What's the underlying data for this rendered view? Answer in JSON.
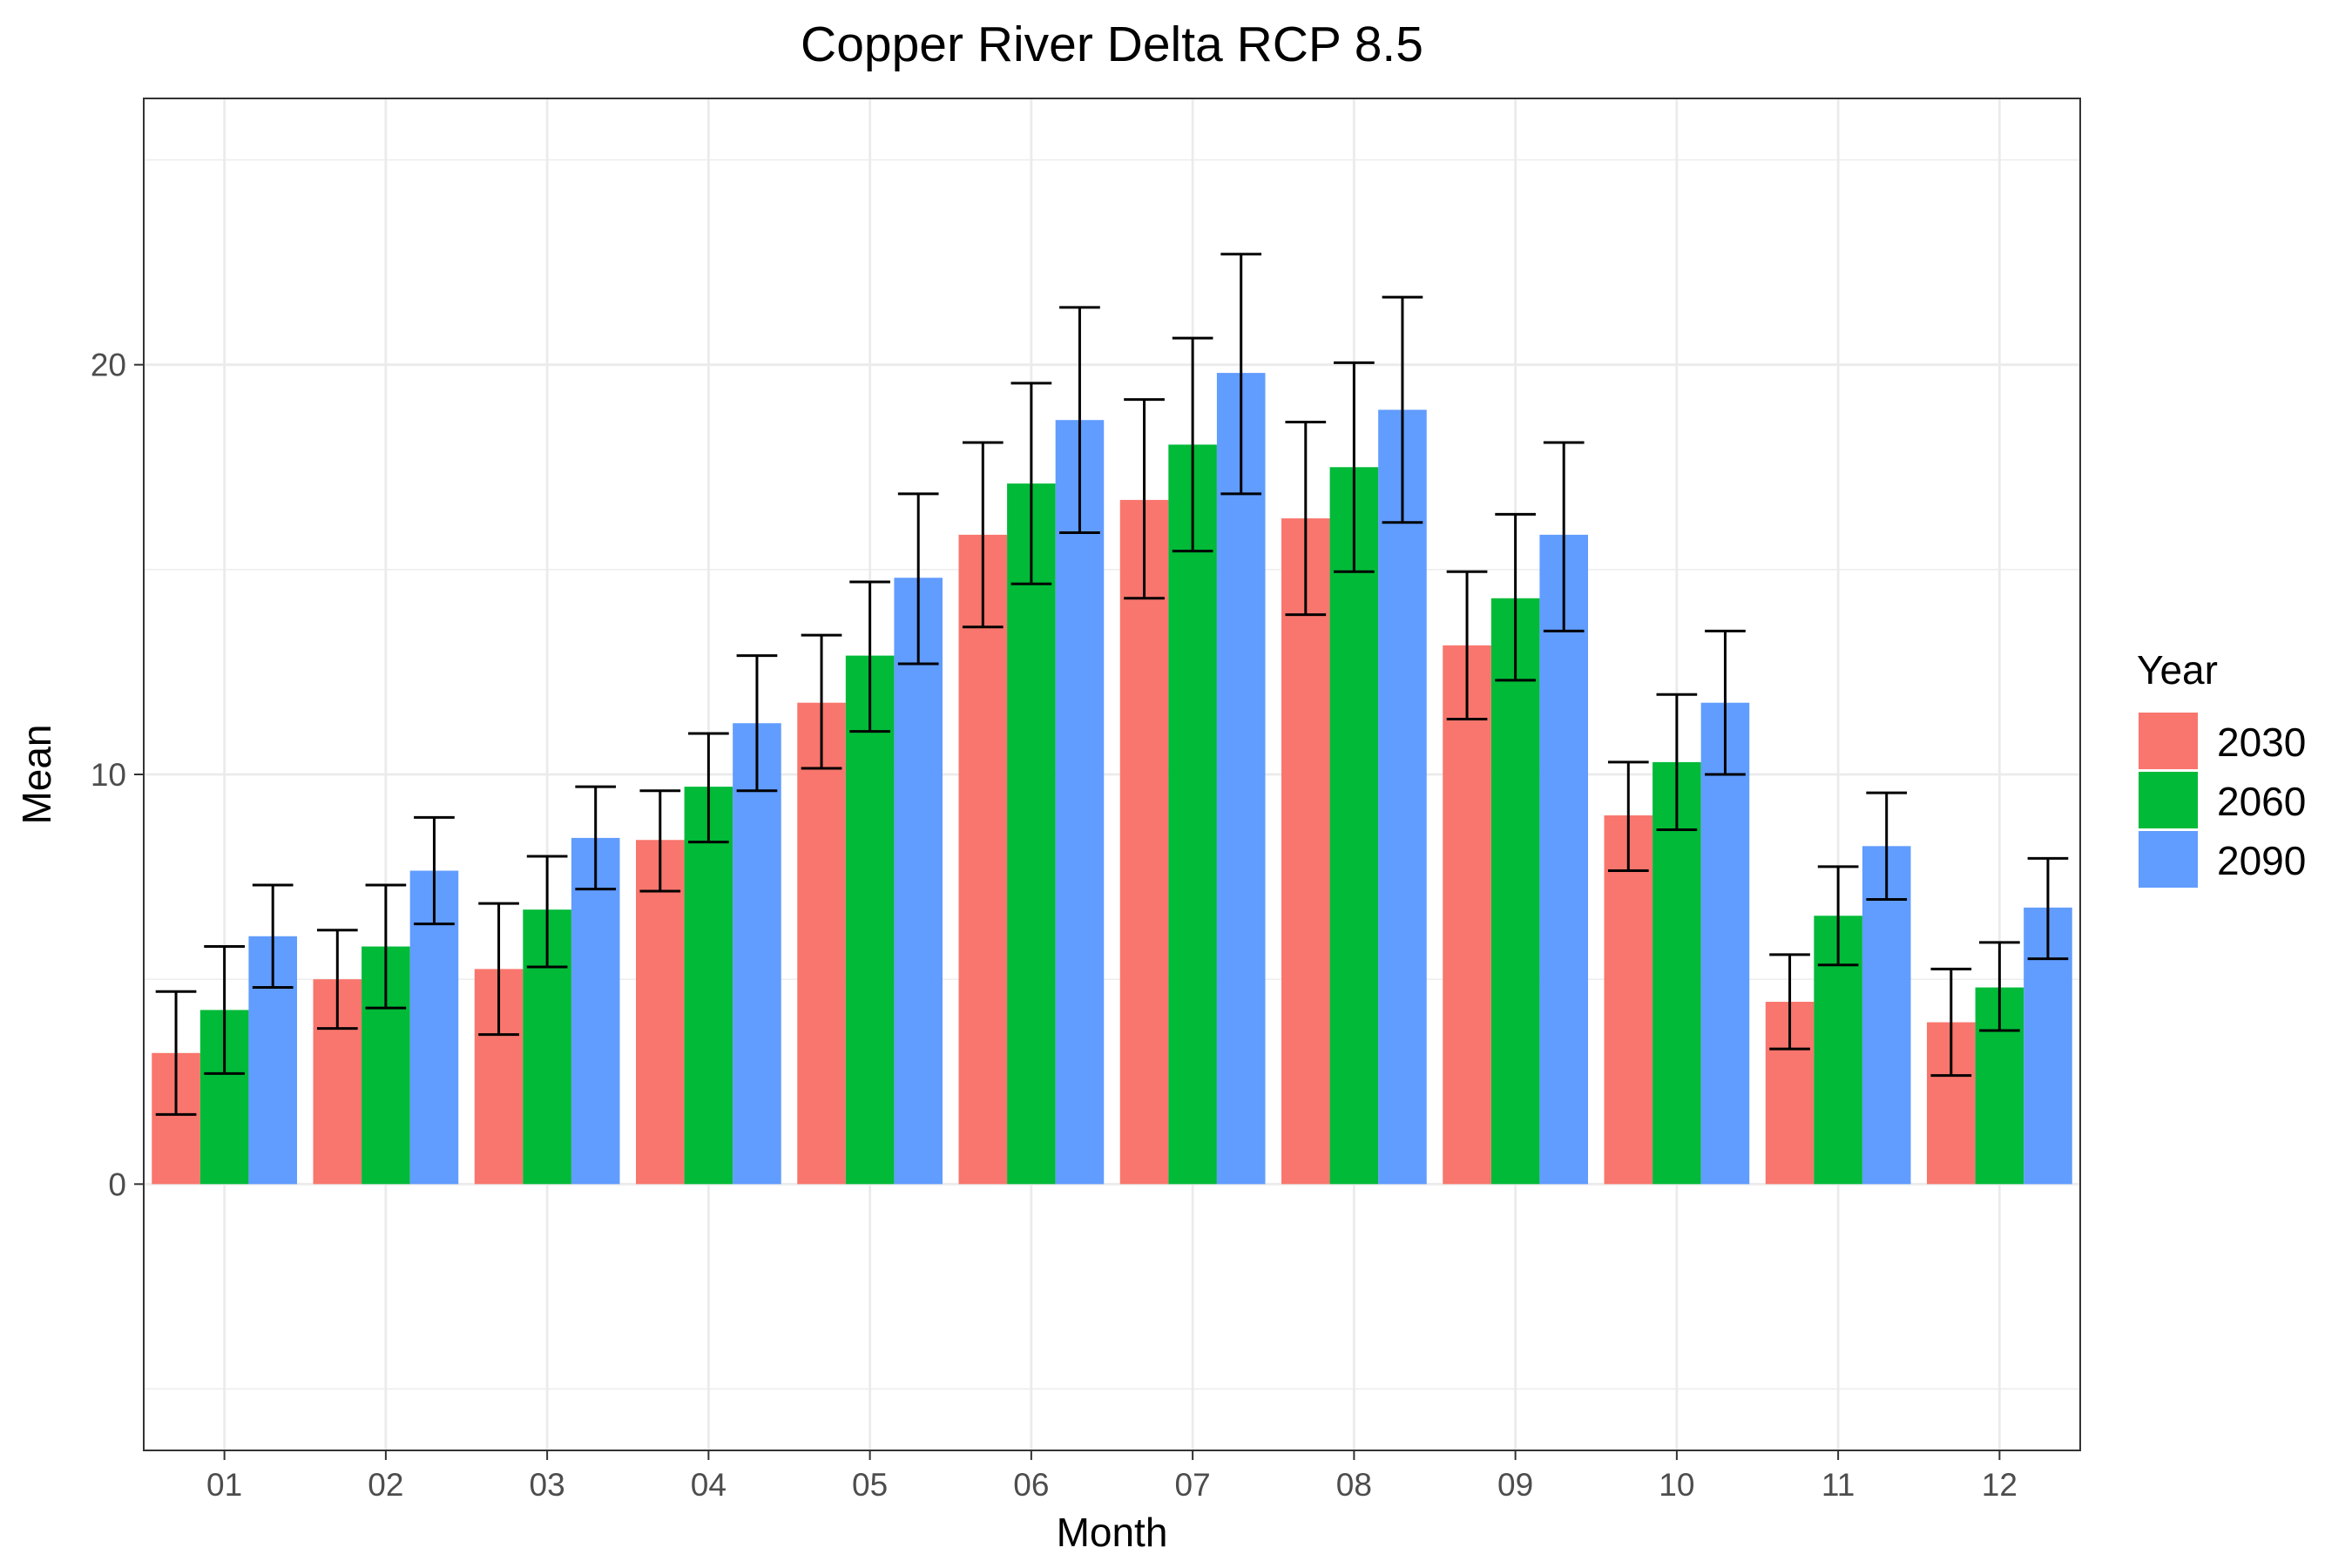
{
  "chart_data": {
    "type": "bar",
    "title": "Copper River Delta RCP 8.5",
    "xlabel": "Month",
    "ylabel": "Mean",
    "ylim": [
      -6.5,
      26.5
    ],
    "yticks": [
      0,
      10,
      20
    ],
    "grid": true,
    "legend_position": "right",
    "legend_title": "Year",
    "categories": [
      "01",
      "02",
      "03",
      "04",
      "05",
      "06",
      "07",
      "08",
      "09",
      "10",
      "11",
      "12"
    ],
    "series": [
      {
        "name": "2030",
        "color": "#F8766D",
        "values": [
          3.2,
          5.0,
          5.25,
          8.4,
          11.75,
          15.85,
          16.7,
          16.25,
          13.15,
          9.0,
          4.45,
          3.95
        ],
        "error_low": [
          1.7,
          3.8,
          3.65,
          7.15,
          10.15,
          13.6,
          14.3,
          13.9,
          11.35,
          7.65,
          3.3,
          2.65
        ],
        "error_high": [
          4.7,
          6.2,
          6.85,
          9.6,
          13.4,
          18.1,
          19.15,
          18.6,
          14.95,
          10.3,
          5.6,
          5.25
        ]
      },
      {
        "name": "2060",
        "color": "#00BA38",
        "values": [
          4.25,
          5.8,
          6.7,
          9.7,
          12.9,
          17.1,
          18.05,
          17.5,
          14.3,
          10.3,
          6.55,
          4.8
        ],
        "error_low": [
          2.7,
          4.3,
          5.3,
          8.35,
          11.05,
          14.65,
          15.45,
          14.95,
          12.3,
          8.65,
          5.35,
          3.75
        ],
        "error_high": [
          5.8,
          7.3,
          8.0,
          11.0,
          14.7,
          19.55,
          20.65,
          20.05,
          16.35,
          11.95,
          7.75,
          5.9
        ]
      },
      {
        "name": "2090",
        "color": "#619CFF",
        "values": [
          6.05,
          7.65,
          8.45,
          11.25,
          14.8,
          18.65,
          19.8,
          18.9,
          15.85,
          11.75,
          8.25,
          6.75
        ],
        "error_low": [
          4.8,
          6.35,
          7.2,
          9.6,
          12.7,
          15.9,
          16.85,
          16.15,
          13.5,
          10.0,
          6.95,
          5.5
        ],
        "error_high": [
          7.3,
          8.95,
          9.7,
          12.9,
          16.85,
          21.4,
          22.7,
          21.65,
          18.1,
          13.5,
          9.55,
          7.95
        ]
      }
    ]
  }
}
